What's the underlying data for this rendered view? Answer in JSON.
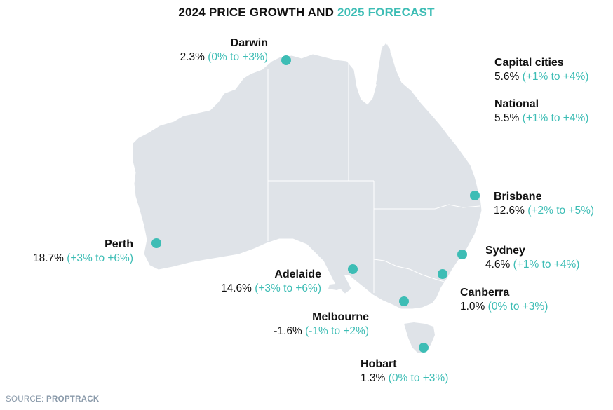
{
  "title": {
    "part1": "2024 PRICE GROWTH AND",
    "part2": "2025 FORECAST"
  },
  "colors": {
    "accent": "#3dbdb5",
    "land": "#dfe3e8",
    "border": "#ffffff",
    "text": "#111111",
    "source": "#8a9aaa"
  },
  "regions": [
    {
      "name": "Darwin",
      "growth": "2.3%",
      "forecast": "(0% to +3%)"
    },
    {
      "name": "Capital cities",
      "growth": "5.6%",
      "forecast": "(+1% to +4%)"
    },
    {
      "name": "National",
      "growth": "5.5%",
      "forecast": "(+1% to +4%)"
    },
    {
      "name": "Brisbane",
      "growth": "12.6%",
      "forecast": "(+2% to +5%)"
    },
    {
      "name": "Perth",
      "growth": "18.7%",
      "forecast": "(+3% to +6%)"
    },
    {
      "name": "Sydney",
      "growth": "4.6%",
      "forecast": "(+1% to +4%)"
    },
    {
      "name": "Adelaide",
      "growth": "14.6%",
      "forecast": "(+3% to +6%)"
    },
    {
      "name": "Canberra",
      "growth": "1.0%",
      "forecast": "(0% to +3%)"
    },
    {
      "name": "Melbourne",
      "growth": "-1.6%",
      "forecast": "(-1% to +2%)"
    },
    {
      "name": "Hobart",
      "growth": "1.3%",
      "forecast": "(0% to +3%)"
    }
  ],
  "source": {
    "prefix": "SOURCE:",
    "name": "PROPTRACK"
  }
}
